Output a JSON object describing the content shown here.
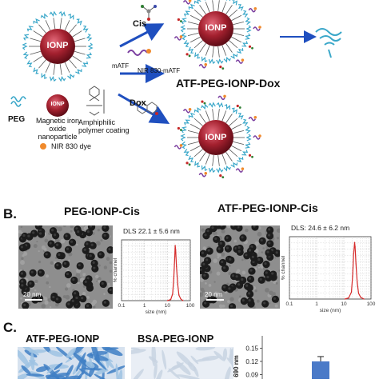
{
  "panel_a": {
    "label_cis": "Cis",
    "label_matf": "mATF",
    "label_nir_matf": "NIR 830-mATF",
    "label_dox": "Dox",
    "label_core": "IONP",
    "title_dox_conj": "ATF-PEG-IONP-Dox",
    "legend_peg": "PEG",
    "legend_ionp_core": "IONP",
    "legend_ionp": "Magnetic iron oxide nanoparticle",
    "legend_coating": "Amphiphilic polymer coating",
    "legend_nir": "NIR 830 dye",
    "colors": {
      "core": "#9e1f2c",
      "peg": "#3aa7c9",
      "arrow": "#1f4fbf",
      "dye": "#f08a2c"
    }
  },
  "panel_b": {
    "letter": "B.",
    "left_title": "PEG-IONP-Cis",
    "right_title": "ATF-PEG-IONP-Cis",
    "left_scalebar": "20 nm",
    "right_scalebar": "20 nm",
    "left_dls": "DLS 22.1 ± 5.6 nm",
    "right_dls": "DLS: 24.6 ± 6.2 nm"
  },
  "chart_data": [
    {
      "type": "line",
      "title": "",
      "annotation": "DLS 22.1 ± 5.6 nm",
      "xlabel": "size (nm)",
      "ylabel": "% channel",
      "xscale": "log",
      "xlim": [
        0.1,
        100
      ],
      "xticks": [
        "0.1",
        "1",
        "10",
        "100"
      ],
      "grid": true,
      "series": [
        {
          "x": [
            10,
            14,
            17,
            19,
            21,
            22,
            23,
            25,
            28,
            32,
            38,
            48
          ],
          "y": [
            0,
            2,
            12,
            40,
            80,
            100,
            92,
            62,
            30,
            10,
            3,
            0
          ],
          "color": "#d62b2b"
        }
      ]
    },
    {
      "type": "line",
      "title": "",
      "annotation": "DLS: 24.6 ± 6.2 nm",
      "xlabel": "size (nm)",
      "ylabel": "% channel",
      "xscale": "log",
      "xlim": [
        0.1,
        100
      ],
      "xticks": [
        "0.1",
        "1",
        "10",
        "100"
      ],
      "grid": true,
      "series": [
        {
          "x": [
            11,
            15,
            19,
            21,
            23,
            25,
            26,
            28,
            31,
            35,
            42,
            55
          ],
          "y": [
            0,
            2,
            12,
            40,
            80,
            100,
            92,
            62,
            30,
            10,
            3,
            0
          ],
          "color": "#d62b2b"
        }
      ]
    },
    {
      "type": "bar",
      "title": "",
      "ylabel": "690 nm",
      "yticks": [
        "0.09",
        "0.12",
        "0.15"
      ],
      "ylim": [
        0.08,
        0.16
      ],
      "grid": false,
      "categories": [
        ""
      ],
      "values": [
        0.12
      ],
      "error": [
        0.011
      ],
      "color": "#4a7ac8"
    }
  ],
  "panel_c": {
    "letter": "C.",
    "left_title": "ATF-PEG-IONP",
    "right_title": "BSA-PEG-IONP"
  }
}
